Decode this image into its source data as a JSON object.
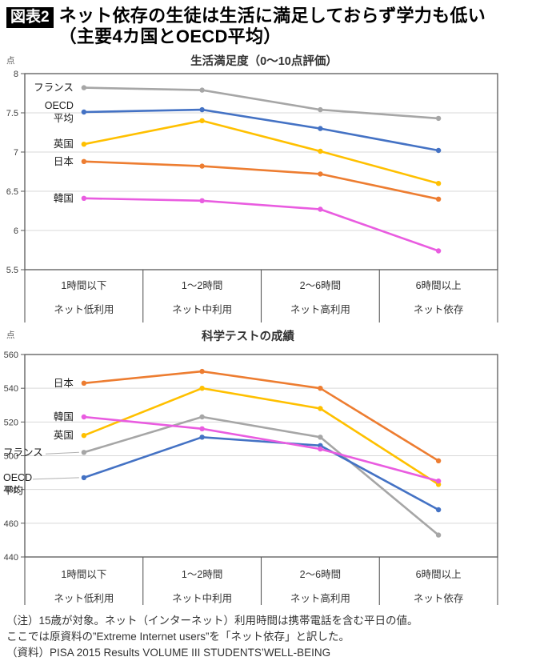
{
  "page": {
    "badge": "図表2",
    "title_line1": "ネット依存の生徒は生活に満足しておらず学力も低い",
    "title_line2": "（主要4カ国とOECD平均）"
  },
  "colors": {
    "japan": "#ED7D31",
    "uk": "#FFC000",
    "korea": "#E95CE0",
    "france": "#A6A6A6",
    "oecd": "#4472C4",
    "axis": "#595959",
    "gridline": "#D9D9D9",
    "leader": "#B0B0B0"
  },
  "chart_data": [
    {
      "type": "line",
      "title": "生活満足度（0～10点評価）",
      "unit": "点",
      "categories": [
        "1時間以下",
        "1～2時間",
        "2～6時間",
        "6時間以上"
      ],
      "categories_sub": [
        "ネット低利用",
        "ネット中利用",
        "ネット高利用",
        "ネット依存"
      ],
      "ylim": [
        5.5,
        8
      ],
      "ytick_step": 0.5,
      "grid": true,
      "legend": "inline-labels",
      "series": [
        {
          "key": "france",
          "name": "フランス",
          "label_lines": [
            "フランス"
          ],
          "label_mode": "near",
          "color": "#A6A6A6",
          "values": [
            7.82,
            7.79,
            7.54,
            7.43
          ]
        },
        {
          "key": "oecd",
          "name": "OECD平均",
          "label_lines": [
            "OECD",
            "平均"
          ],
          "label_mode": "near",
          "color": "#4472C4",
          "values": [
            7.51,
            7.54,
            7.3,
            7.02
          ]
        },
        {
          "key": "uk",
          "name": "英国",
          "label_lines": [
            "英国"
          ],
          "label_mode": "near",
          "color": "#FFC000",
          "values": [
            7.1,
            7.4,
            7.01,
            6.6
          ]
        },
        {
          "key": "japan",
          "name": "日本",
          "label_lines": [
            "日本"
          ],
          "label_mode": "near",
          "color": "#ED7D31",
          "values": [
            6.88,
            6.82,
            6.72,
            6.4
          ]
        },
        {
          "key": "korea",
          "name": "韓国",
          "label_lines": [
            "韓国"
          ],
          "label_mode": "near",
          "color": "#E95CE0",
          "values": [
            6.41,
            6.38,
            6.27,
            5.74
          ]
        }
      ]
    },
    {
      "type": "line",
      "title": "科学テストの成績",
      "unit": "点",
      "categories": [
        "1時間以下",
        "1～2時間",
        "2～6時間",
        "6時間以上"
      ],
      "categories_sub": [
        "ネット低利用",
        "ネット中利用",
        "ネット高利用",
        "ネット依存"
      ],
      "ylim": [
        440,
        560
      ],
      "ytick_step": 20,
      "grid": true,
      "legend": "inline-labels",
      "series": [
        {
          "key": "france",
          "name": "フランス",
          "label_lines": [
            "フランス"
          ],
          "label_mode": "edge",
          "color": "#A6A6A6",
          "values": [
            502,
            523,
            511,
            453
          ]
        },
        {
          "key": "oecd",
          "name": "OECD平均",
          "label_lines": [
            "OECD",
            "平均"
          ],
          "label_mode": "edge",
          "color": "#4472C4",
          "values": [
            487,
            511,
            506,
            468
          ]
        },
        {
          "key": "uk",
          "name": "英国",
          "label_lines": [
            "英国"
          ],
          "label_mode": "near",
          "color": "#FFC000",
          "values": [
            512,
            540,
            528,
            483
          ]
        },
        {
          "key": "japan",
          "name": "日本",
          "label_lines": [
            "日本"
          ],
          "label_mode": "near",
          "color": "#ED7D31",
          "values": [
            543,
            550,
            540,
            497
          ]
        },
        {
          "key": "korea",
          "name": "韓国",
          "label_lines": [
            "韓国"
          ],
          "label_mode": "near",
          "color": "#E95CE0",
          "values": [
            523,
            516,
            504,
            485
          ]
        }
      ]
    }
  ],
  "footer": {
    "note1": "（注）15歳が対象。ネット（インターネット）利用時間は携帯電話を含む平日の値。",
    "note2": "ここでは原資料の”Extreme Internet users”を「ネット依存」と訳した。",
    "note3": "（資料）PISA 2015 Results VOLUME III STUDENTS’WELL-BEING"
  }
}
